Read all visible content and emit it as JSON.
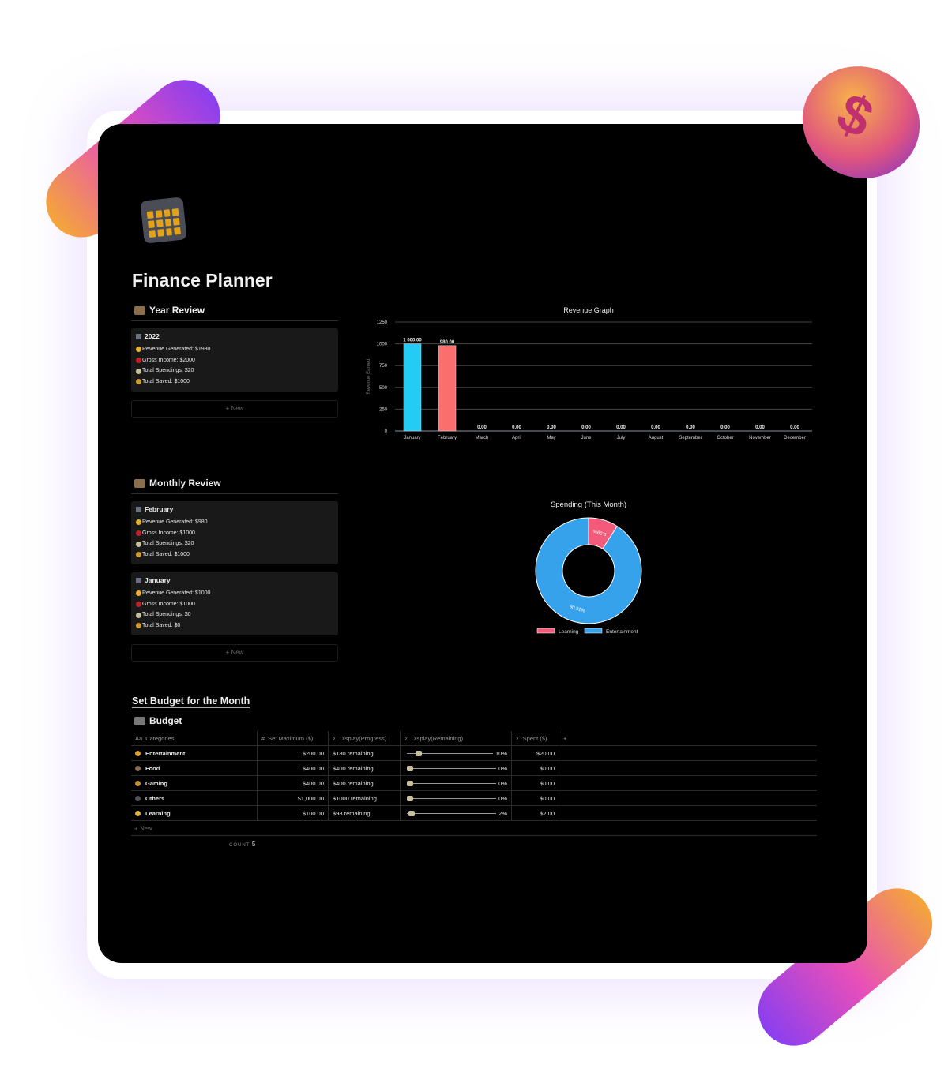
{
  "page": {
    "title": "Finance Planner",
    "icon": "calendar-icon"
  },
  "year_review": {
    "heading": "Year Review",
    "new_label": "New",
    "cards": [
      {
        "title": "2022",
        "lines": [
          "Revenue Generated: $1980",
          "Gross Income: $2000",
          "Total Spendings: $20",
          "Total Saved: $1000"
        ]
      }
    ]
  },
  "monthly_review": {
    "heading": "Monthly Review",
    "new_label": "New",
    "cards": [
      {
        "title": "February",
        "lines": [
          "Revenue Generated: $980",
          "Gross Income: $1000",
          "Total Spendings: $20",
          "Total Saved: $1000"
        ]
      },
      {
        "title": "January",
        "lines": [
          "Revenue Generated: $1000",
          "Gross Income: $1000",
          "Total Spendings: $0",
          "Total Saved: $0"
        ]
      }
    ]
  },
  "line_icons": [
    "money-face-icon",
    "hundred-icon",
    "money-wings-icon",
    "money-bag-icon"
  ],
  "line_colors": [
    "#e8b030",
    "#c0202a",
    "#c9c0a0",
    "#d09a30"
  ],
  "chart_data": [
    {
      "type": "bar",
      "title": "Revenue Graph",
      "xlabel": "",
      "ylabel": "Revenue Earned",
      "categories": [
        "January",
        "February",
        "March",
        "April",
        "May",
        "June",
        "July",
        "August",
        "September",
        "October",
        "November",
        "December"
      ],
      "values": [
        1000,
        980,
        0,
        0,
        0,
        0,
        0,
        0,
        0,
        0,
        0,
        0
      ],
      "data_labels": [
        "1 000.00",
        "980.00",
        "0.00",
        "0.00",
        "0.00",
        "0.00",
        "0.00",
        "0.00",
        "0.00",
        "0.00",
        "0.00",
        "0.00"
      ],
      "colors": [
        "#22ccf5",
        "#fa6e6e"
      ],
      "ylim": [
        0,
        1250
      ],
      "yticks": [
        0,
        250,
        500,
        750,
        1000,
        1250
      ],
      "grid": true
    },
    {
      "type": "pie",
      "title": "Spending (This Month)",
      "donut": true,
      "labels": [
        "Learning",
        "Entertainment"
      ],
      "values": [
        9.09,
        90.91
      ],
      "data_labels": [
        "9.09%",
        "90.91%"
      ],
      "colors": [
        "#f45b7a",
        "#36a2eb"
      ],
      "legend": "bottom"
    }
  ],
  "budget": {
    "section_title": "Set Budget for the Month",
    "heading": "Budget",
    "columns": [
      "Categories",
      "Set Maximum ($)",
      "Display(Progress)",
      "Display(Remaining)",
      "Spent ($)"
    ],
    "column_icons": [
      "Aa",
      "#",
      "Σ",
      "Σ",
      "Σ"
    ],
    "add_column": "+",
    "rows": [
      {
        "category": "Entertainment",
        "max": "$200.00",
        "progress": "$180 remaining",
        "pct_label": "10%",
        "pct": 10,
        "spent": "$20.00",
        "icon_color": "#e0a030"
      },
      {
        "category": "Food",
        "max": "$400.00",
        "progress": "$400 remaining",
        "pct_label": "0%",
        "pct": 0,
        "spent": "$0.00",
        "icon_color": "#8a6a50"
      },
      {
        "category": "Gaming",
        "max": "$400.00",
        "progress": "$400 remaining",
        "pct_label": "0%",
        "pct": 0,
        "spent": "$0.00",
        "icon_color": "#c09030"
      },
      {
        "category": "Others",
        "max": "$1,000.00",
        "progress": "$1000 remaining",
        "pct_label": "0%",
        "pct": 0,
        "spent": "$0.00",
        "icon_color": "#50505a"
      },
      {
        "category": "Learning",
        "max": "$100.00",
        "progress": "$98 remaining",
        "pct_label": "2%",
        "pct": 2,
        "spent": "$2.00",
        "icon_color": "#e0b040"
      }
    ],
    "new_label": "New",
    "count_label": "COUNT",
    "count": "5"
  }
}
